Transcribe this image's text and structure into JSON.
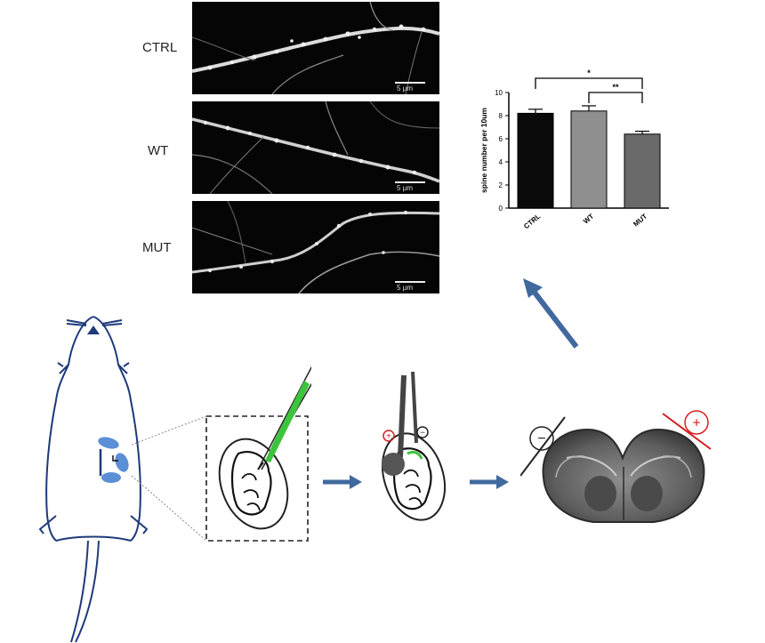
{
  "panels": [
    {
      "label": "CTRL",
      "scale_label": "5 μm"
    },
    {
      "label": "WT",
      "scale_label": "5 μm"
    },
    {
      "label": "MUT",
      "scale_label": "5 μm"
    }
  ],
  "chart_data": {
    "type": "bar",
    "categories": [
      "CTRL",
      "WT",
      "MUT"
    ],
    "values": [
      8.2,
      8.4,
      6.4
    ],
    "errors": [
      0.35,
      0.45,
      0.25
    ],
    "ylabel": "spine number per 10um",
    "xlabel": "",
    "ylim": [
      0,
      10
    ],
    "yticks": [
      "0",
      "2",
      "4",
      "6",
      "8",
      "10"
    ],
    "bar_colors": [
      "#0a0a0a",
      "#8f8f8f",
      "#6a6a6a"
    ],
    "significance": [
      {
        "from": "CTRL",
        "to": "MUT",
        "label": "*"
      },
      {
        "from": "WT",
        "to": "MUT",
        "label": "**"
      }
    ]
  },
  "electrodes": {
    "positive": "+",
    "negative": "−"
  },
  "colors": {
    "mouse_outline": "#1f3a7a",
    "embryo_blue": "#5b8fd6",
    "arrow": "#40699e",
    "pipette_fill": "#3cc43c",
    "positive": "#d42020",
    "negative": "#222222"
  }
}
